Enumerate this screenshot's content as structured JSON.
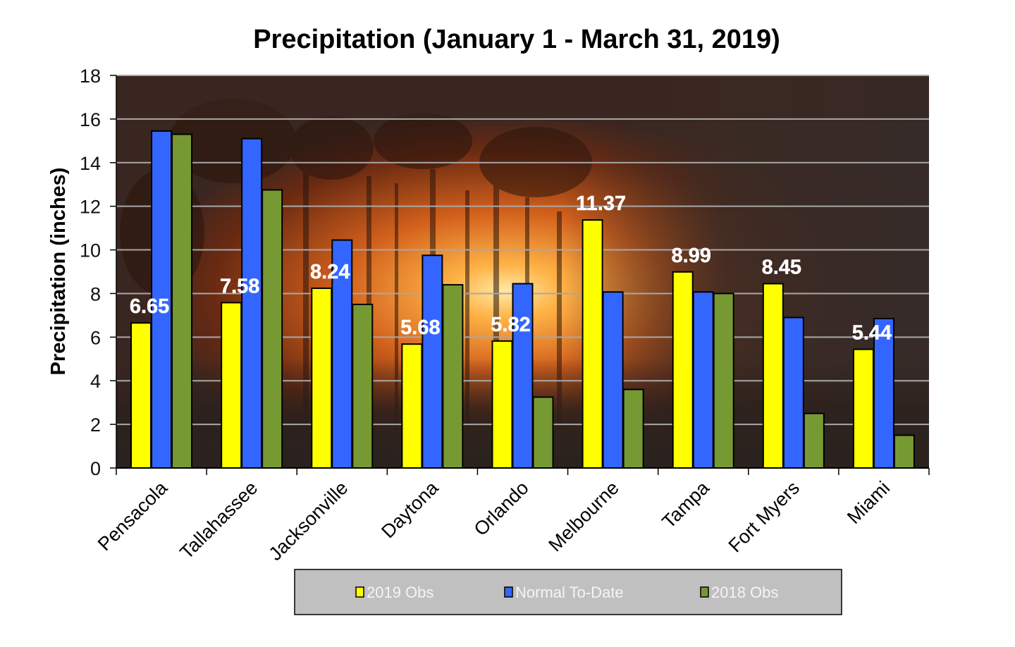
{
  "chart_data": {
    "type": "bar",
    "title": "Precipitation  (January 1 - March 31, 2019)",
    "xlabel": "",
    "ylabel": "Precipitation (inches)",
    "ylim": [
      0,
      18
    ],
    "yticks": [
      0,
      2,
      4,
      6,
      8,
      10,
      12,
      14,
      16,
      18
    ],
    "ytick_labels": [
      "0",
      "2",
      "4",
      "6",
      "8",
      "10",
      "12",
      "14",
      "16",
      "18"
    ],
    "grid": true,
    "legend_position": "bottom",
    "categories": [
      "Pensacola",
      "Tallahassee",
      "Jacksonville",
      "Daytona",
      "Orlando",
      "Melbourne",
      "Tampa",
      "Fort Myers",
      "Miami"
    ],
    "series": [
      {
        "name": "2019 Obs",
        "color": "#ffff00",
        "values": [
          6.65,
          7.58,
          8.24,
          5.68,
          5.82,
          11.37,
          8.99,
          8.45,
          5.44
        ],
        "data_labels": [
          "6.65",
          "7.58",
          "8.24",
          "5.68",
          "5.82",
          "11.37",
          "8.99",
          "8.45",
          "5.44"
        ]
      },
      {
        "name": "Normal To-Date",
        "color": "#3366ff",
        "values": [
          15.45,
          15.1,
          10.45,
          9.75,
          8.45,
          8.07,
          8.07,
          6.9,
          6.85
        ]
      },
      {
        "name": "2018 Obs",
        "color": "#779933",
        "values": [
          15.3,
          12.75,
          7.5,
          8.4,
          3.25,
          3.6,
          8.0,
          2.5,
          1.5
        ]
      }
    ]
  }
}
